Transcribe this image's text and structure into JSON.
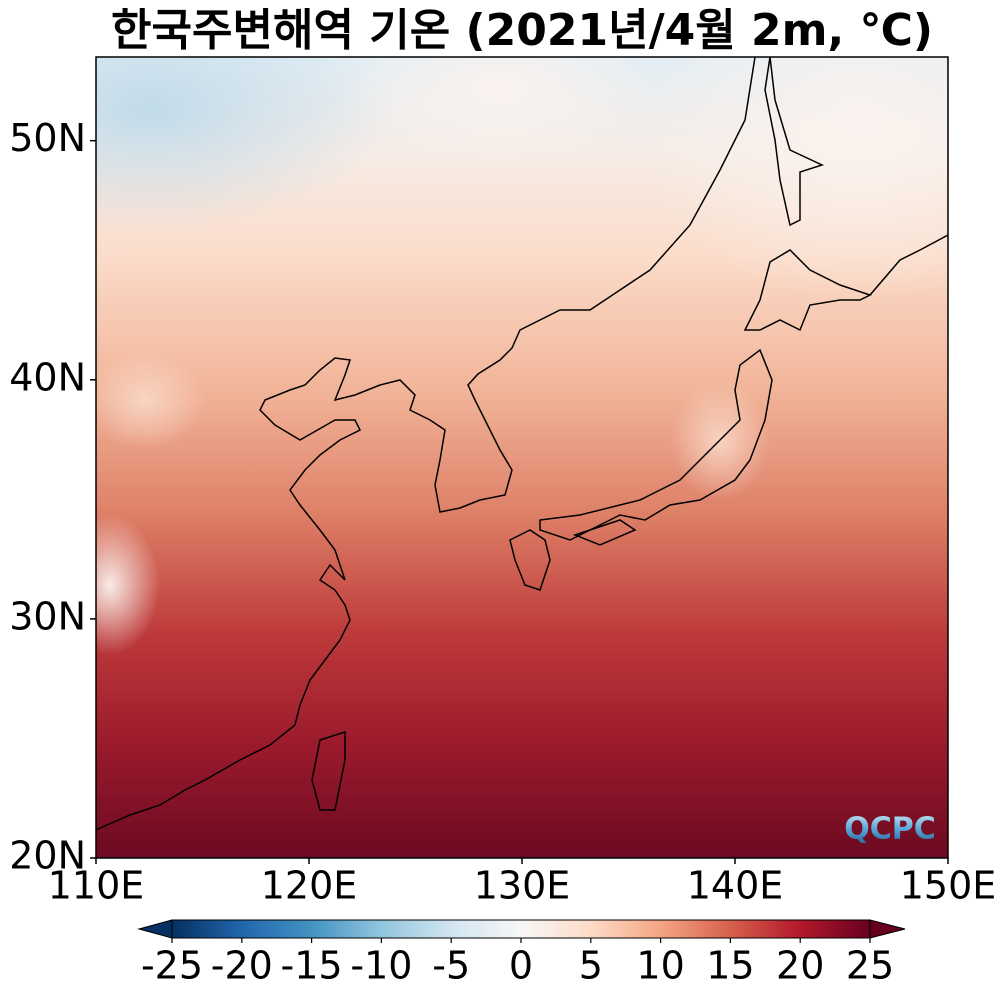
{
  "chart_data": {
    "type": "map",
    "title": "한국주변해역 기온 (2021년/4월 2m, ℃)",
    "xlim": [
      110,
      150
    ],
    "ylim": [
      20,
      53.5
    ],
    "xticks": [
      {
        "value": 110,
        "label": "110E"
      },
      {
        "value": 120,
        "label": "120E"
      },
      {
        "value": 130,
        "label": "130E"
      },
      {
        "value": 140,
        "label": "140E"
      },
      {
        "value": 150,
        "label": "150E"
      }
    ],
    "yticks": [
      {
        "value": 20,
        "label": "20N"
      },
      {
        "value": 30,
        "label": "30N"
      },
      {
        "value": 40,
        "label": "40N"
      },
      {
        "value": 50,
        "label": "50N"
      }
    ],
    "colorbar": {
      "lim": [
        -25,
        25
      ],
      "ticks": [
        -25,
        -20,
        -15,
        -10,
        -5,
        0,
        5,
        10,
        15,
        20,
        25
      ],
      "colors": [
        "#053061",
        "#2166ac",
        "#4393c3",
        "#92c5de",
        "#d1e5f0",
        "#f7f7f7",
        "#fddbc7",
        "#f4a582",
        "#d6604d",
        "#b2182b",
        "#67001f"
      ]
    },
    "logo": "QCPC"
  }
}
